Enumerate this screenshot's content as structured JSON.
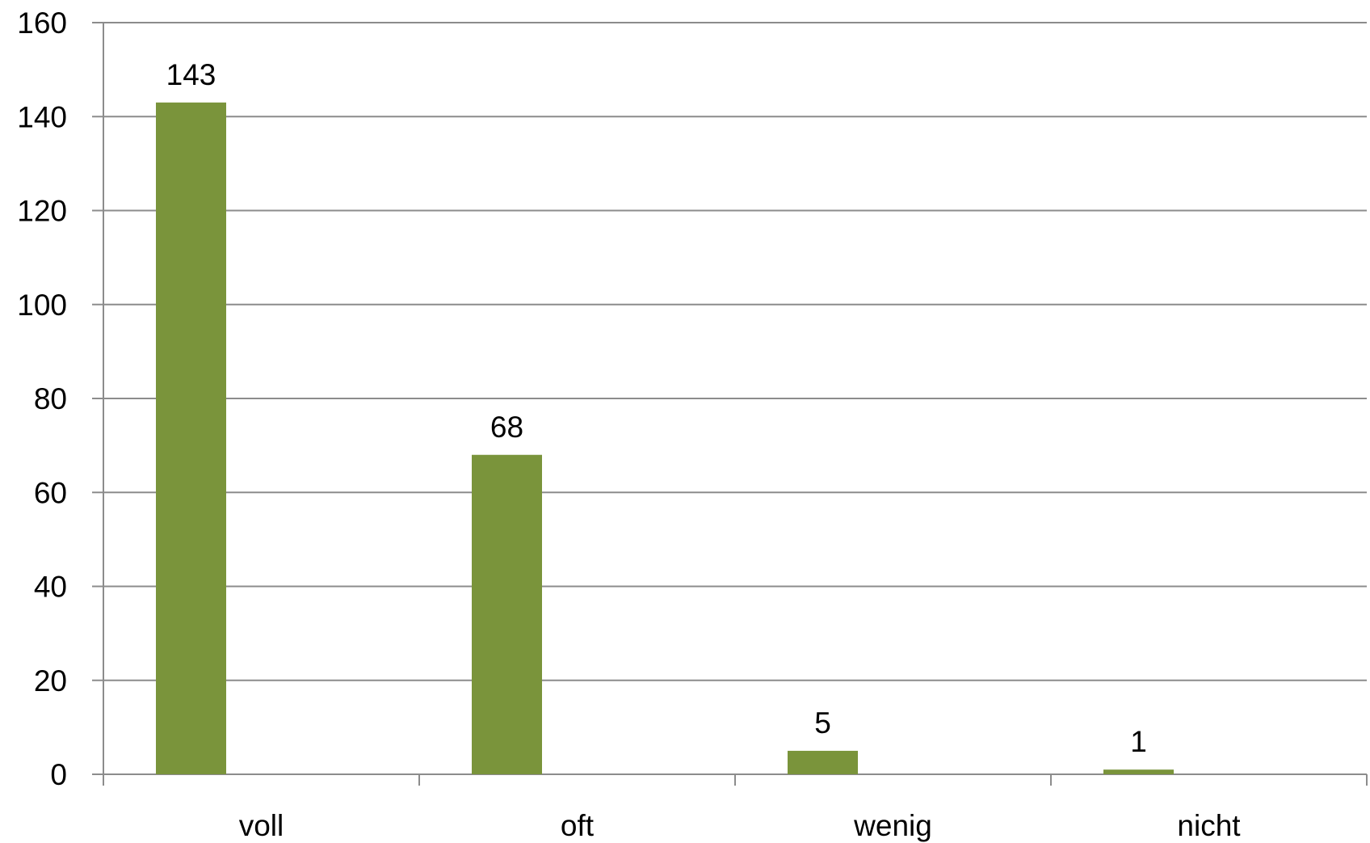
{
  "chart_data": {
    "type": "bar",
    "categories": [
      "voll",
      "oft",
      "wenig",
      "nicht"
    ],
    "values": [
      143,
      68,
      5,
      1
    ],
    "data_labels": [
      "143",
      "68",
      "5",
      "1"
    ],
    "y_ticks": [
      0,
      20,
      40,
      60,
      80,
      100,
      120,
      140,
      160
    ],
    "ylim": [
      0,
      160
    ],
    "title": "",
    "xlabel": "",
    "ylabel": "",
    "grid": true,
    "legend": "none",
    "bar_color": "#7a943b",
    "grid_color": "#8c8c8c",
    "axis_color": "#8c8c8c"
  }
}
